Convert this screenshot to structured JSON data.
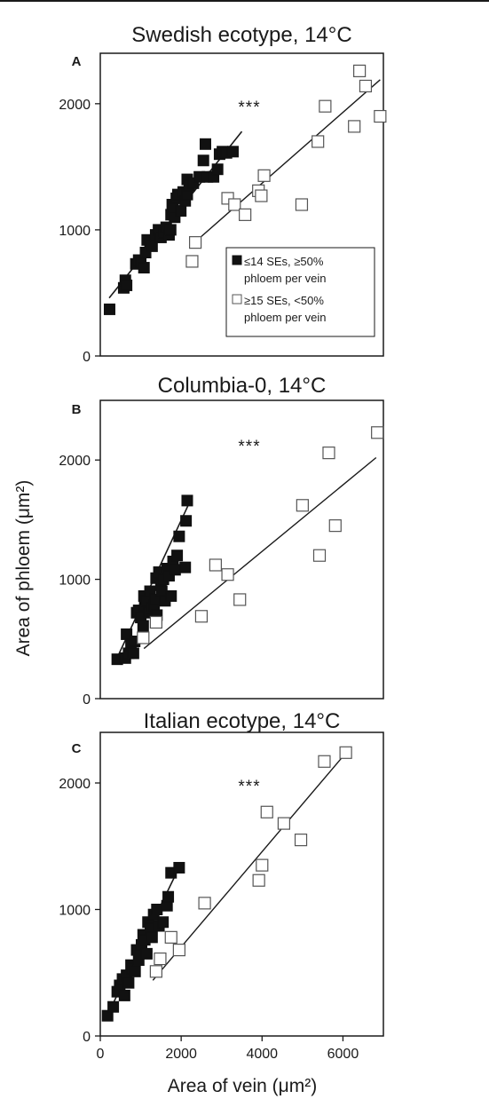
{
  "figure": {
    "ylabel": "Area of phloem (μm²)",
    "xlabel": "Area of vein (μm²)",
    "legend": {
      "filled": "≤14 SEs, ≥50% phloem per vein",
      "open": "≥15 SEs, <50% phloem per vein"
    }
  },
  "chart_data": [
    {
      "type": "scatter",
      "panel": "A",
      "title": "Swedish ecotype, 14°C",
      "annotation": "***",
      "xlim": [
        0,
        7000
      ],
      "ylim": [
        0,
        2400
      ],
      "yticks": [
        0,
        1000,
        2000
      ],
      "xticks": [],
      "grid": false,
      "legend_position": "bottom-right",
      "series": [
        {
          "marker": "filled-square",
          "points": [
            [
              230,
              370
            ],
            [
              580,
              540
            ],
            [
              620,
              600
            ],
            [
              650,
              560
            ],
            [
              880,
              730
            ],
            [
              950,
              760
            ],
            [
              1000,
              740
            ],
            [
              1080,
              700
            ],
            [
              1120,
              820
            ],
            [
              1160,
              920
            ],
            [
              1230,
              900
            ],
            [
              1280,
              870
            ],
            [
              1370,
              960
            ],
            [
              1440,
              1000
            ],
            [
              1500,
              940
            ],
            [
              1560,
              980
            ],
            [
              1630,
              1020
            ],
            [
              1700,
              960
            ],
            [
              1740,
              1000
            ],
            [
              1750,
              1120
            ],
            [
              1780,
              1200
            ],
            [
              1800,
              1170
            ],
            [
              1840,
              1100
            ],
            [
              1880,
              1250
            ],
            [
              1920,
              1280
            ],
            [
              1990,
              1150
            ],
            [
              2050,
              1300
            ],
            [
              2100,
              1230
            ],
            [
              2150,
              1280
            ],
            [
              2150,
              1400
            ],
            [
              2200,
              1350
            ],
            [
              2300,
              1370
            ],
            [
              2450,
              1420
            ],
            [
              2550,
              1550
            ],
            [
              2600,
              1680
            ],
            [
              2650,
              1420
            ],
            [
              2800,
              1420
            ],
            [
              2900,
              1480
            ],
            [
              2950,
              1600
            ],
            [
              3020,
              1620
            ],
            [
              3120,
              1610
            ],
            [
              3280,
              1620
            ]
          ],
          "fit": [
            [
              220,
              460
            ],
            [
              3500,
              1780
            ]
          ]
        },
        {
          "marker": "open-square",
          "points": [
            [
              2270,
              750
            ],
            [
              2350,
              900
            ],
            [
              3150,
              1250
            ],
            [
              3320,
              1200
            ],
            [
              3580,
              1120
            ],
            [
              3910,
              1310
            ],
            [
              3980,
              1270
            ],
            [
              4050,
              1430
            ],
            [
              4980,
              1200
            ],
            [
              5380,
              1700
            ],
            [
              5560,
              1980
            ],
            [
              6280,
              1820
            ],
            [
              6410,
              2260
            ],
            [
              6560,
              2140
            ],
            [
              6920,
              1900
            ]
          ],
          "fit": [
            [
              2330,
              900
            ],
            [
              6920,
              2190
            ]
          ]
        }
      ]
    },
    {
      "type": "scatter",
      "panel": "B",
      "title": "Columbia-0, 14°C",
      "annotation": "***",
      "xlim": [
        0,
        7000
      ],
      "ylim": [
        0,
        2500
      ],
      "yticks": [
        0,
        1000,
        2000
      ],
      "xticks": [],
      "grid": false,
      "legend_position": "none",
      "series": [
        {
          "marker": "filled-square",
          "points": [
            [
              420,
              330
            ],
            [
              620,
              340
            ],
            [
              650,
              540
            ],
            [
              700,
              380
            ],
            [
              760,
              450
            ],
            [
              820,
              380
            ],
            [
              850,
              480
            ],
            [
              900,
              720
            ],
            [
              950,
              740
            ],
            [
              1000,
              680
            ],
            [
              1060,
              610
            ],
            [
              1080,
              860
            ],
            [
              1100,
              780
            ],
            [
              1150,
              820
            ],
            [
              1200,
              720
            ],
            [
              1230,
              900
            ],
            [
              1280,
              760
            ],
            [
              1330,
              780
            ],
            [
              1350,
              830
            ],
            [
              1380,
              1010
            ],
            [
              1400,
              700
            ],
            [
              1450,
              1060
            ],
            [
              1500,
              950
            ],
            [
              1520,
              900
            ],
            [
              1560,
              1000
            ],
            [
              1600,
              820
            ],
            [
              1650,
              1090
            ],
            [
              1700,
              1030
            ],
            [
              1750,
              860
            ],
            [
              1800,
              1150
            ],
            [
              1850,
              1080
            ],
            [
              1900,
              1200
            ],
            [
              1950,
              1360
            ],
            [
              2100,
              1100
            ],
            [
              2120,
              1490
            ],
            [
              2150,
              1660
            ]
          ],
          "fit": [
            [
              400,
              330
            ],
            [
              2200,
              1640
            ]
          ]
        },
        {
          "marker": "open-square",
          "points": [
            [
              1060,
              510
            ],
            [
              1380,
              640
            ],
            [
              2500,
              690
            ],
            [
              2850,
              1120
            ],
            [
              3150,
              1040
            ],
            [
              3450,
              830
            ],
            [
              5000,
              1620
            ],
            [
              5420,
              1200
            ],
            [
              5650,
              2060
            ],
            [
              5810,
              1450
            ],
            [
              6850,
              2230
            ]
          ],
          "fit": [
            [
              1080,
              420
            ],
            [
              6820,
              2020
            ]
          ]
        }
      ]
    },
    {
      "type": "scatter",
      "panel": "C",
      "title": "Italian ecotype, 14°C",
      "annotation": "***",
      "xlim": [
        0,
        7000
      ],
      "ylim": [
        0,
        2400
      ],
      "xticks": [
        0,
        2000,
        4000,
        6000
      ],
      "yticks": [
        0,
        1000,
        2000
      ],
      "grid": false,
      "legend_position": "none",
      "series": [
        {
          "marker": "filled-square",
          "points": [
            [
              180,
              160
            ],
            [
              320,
              230
            ],
            [
              420,
              350
            ],
            [
              480,
              400
            ],
            [
              550,
              450
            ],
            [
              600,
              320
            ],
            [
              650,
              480
            ],
            [
              700,
              420
            ],
            [
              760,
              560
            ],
            [
              800,
              530
            ],
            [
              860,
              510
            ],
            [
              900,
              680
            ],
            [
              950,
              600
            ],
            [
              1020,
              720
            ],
            [
              1060,
              800
            ],
            [
              1100,
              760
            ],
            [
              1150,
              650
            ],
            [
              1180,
              900
            ],
            [
              1240,
              850
            ],
            [
              1280,
              780
            ],
            [
              1320,
              960
            ],
            [
              1400,
              1000
            ],
            [
              1450,
              870
            ],
            [
              1550,
              900
            ],
            [
              1650,
              1030
            ],
            [
              1680,
              1100
            ],
            [
              1750,
              1290
            ],
            [
              1950,
              1330
            ]
          ],
          "fit": [
            [
              200,
              180
            ],
            [
              1900,
              1300
            ]
          ]
        },
        {
          "marker": "open-square",
          "points": [
            [
              1380,
              510
            ],
            [
              1480,
              610
            ],
            [
              1750,
              780
            ],
            [
              1950,
              680
            ],
            [
              2580,
              1050
            ],
            [
              3920,
              1230
            ],
            [
              4000,
              1350
            ],
            [
              4120,
              1770
            ],
            [
              4540,
              1680
            ],
            [
              4960,
              1550
            ],
            [
              5540,
              2170
            ],
            [
              6070,
              2240
            ]
          ],
          "fit": [
            [
              1300,
              440
            ],
            [
              6000,
              2210
            ]
          ]
        }
      ]
    }
  ]
}
